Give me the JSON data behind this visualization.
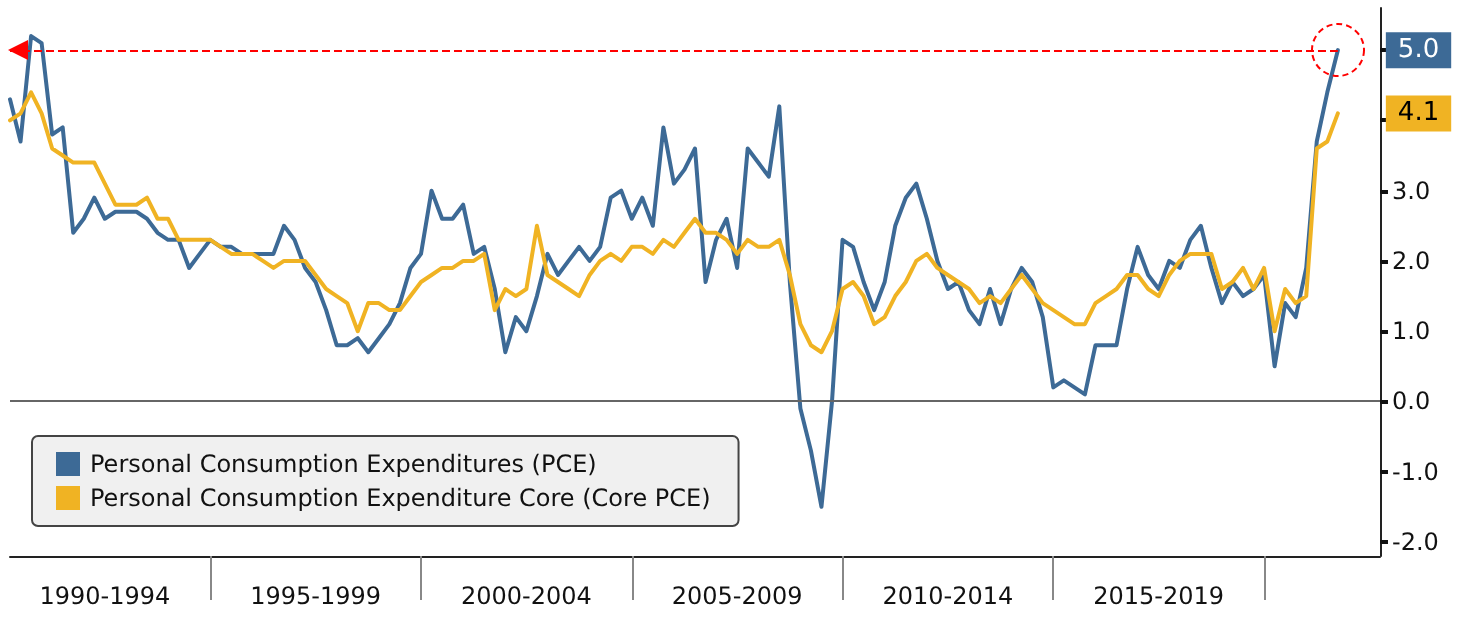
{
  "chart_data": {
    "type": "line",
    "categories": [
      null,
      null,
      null,
      null,
      null,
      null,
      null,
      null,
      null,
      "1990-1994",
      null,
      null,
      null,
      null,
      null,
      null,
      null,
      null,
      null,
      null,
      null,
      null,
      null,
      null,
      null,
      null,
      null,
      null,
      null,
      "1995-1999",
      null,
      null,
      null,
      null,
      null,
      null,
      null,
      null,
      null,
      null,
      null,
      null,
      null,
      null,
      null,
      null,
      null,
      null,
      null,
      "2000-2004",
      null,
      null,
      null,
      null,
      null,
      null,
      null,
      null,
      null,
      null,
      null,
      null,
      null,
      null,
      null,
      null,
      null,
      null,
      null,
      "2005-2009",
      null,
      null,
      null,
      null,
      null,
      null,
      null,
      null,
      null,
      null,
      null,
      null,
      null,
      null,
      null,
      null,
      null,
      null,
      null,
      "2010-2014",
      null,
      null,
      null,
      null,
      null,
      null,
      null,
      null,
      null,
      null,
      null,
      null,
      null,
      null,
      null,
      null,
      null,
      null,
      null,
      "2015-2019",
      null,
      null,
      null,
      null,
      null,
      null,
      null,
      null,
      null,
      null,
      null,
      null,
      null,
      null,
      null,
      null,
      null,
      null,
      null,
      null,
      null
    ],
    "series": [
      {
        "name": "Personal Consumption Expenditures (PCE)",
        "color": "#3d6a96",
        "values": [
          4.3,
          3.7,
          5.2,
          5.1,
          3.8,
          3.9,
          2.4,
          2.6,
          2.9,
          2.6,
          2.7,
          2.7,
          2.7,
          2.6,
          2.4,
          2.3,
          2.3,
          1.9,
          2.1,
          2.3,
          2.2,
          2.2,
          2.1,
          2.1,
          2.1,
          2.1,
          2.5,
          2.3,
          1.9,
          1.7,
          1.3,
          0.8,
          0.8,
          0.9,
          0.7,
          0.9,
          1.1,
          1.4,
          1.9,
          2.1,
          3.0,
          2.6,
          2.6,
          2.8,
          2.1,
          2.2,
          1.6,
          0.7,
          1.2,
          1.0,
          1.5,
          2.1,
          1.8,
          2.0,
          2.2,
          2.0,
          2.2,
          2.9,
          3.0,
          2.6,
          2.9,
          2.5,
          3.9,
          3.1,
          3.3,
          3.6,
          1.7,
          2.3,
          2.6,
          1.9,
          3.6,
          3.4,
          3.2,
          4.2,
          1.7,
          -0.1,
          -0.7,
          -1.5,
          0.0,
          2.3,
          2.2,
          1.7,
          1.3,
          1.7,
          2.5,
          2.9,
          3.1,
          2.6,
          2.0,
          1.6,
          1.7,
          1.3,
          1.1,
          1.6,
          1.1,
          1.6,
          1.9,
          1.7,
          1.2,
          0.2,
          0.3,
          0.2,
          0.1,
          0.8,
          0.8,
          0.8,
          1.6,
          2.2,
          1.8,
          1.6,
          2.0,
          1.9,
          2.3,
          2.5,
          1.9,
          1.4,
          1.7,
          1.5,
          1.6,
          1.8,
          0.5,
          1.4,
          1.2,
          1.9,
          3.7,
          4.4,
          5.0,
          null,
          null,
          null,
          null
        ]
      },
      {
        "name": "Personal Consumption Expenditure Core (Core PCE)",
        "color": "#f0b323",
        "values": [
          4.0,
          4.1,
          4.4,
          4.1,
          3.6,
          3.5,
          3.4,
          3.4,
          3.4,
          3.1,
          2.8,
          2.8,
          2.8,
          2.9,
          2.6,
          2.6,
          2.3,
          2.3,
          2.3,
          2.3,
          2.2,
          2.1,
          2.1,
          2.1,
          2.0,
          1.9,
          2.0,
          2.0,
          2.0,
          1.8,
          1.6,
          1.5,
          1.4,
          1.0,
          1.4,
          1.4,
          1.3,
          1.3,
          1.5,
          1.7,
          1.8,
          1.9,
          1.9,
          2.0,
          2.0,
          2.1,
          1.3,
          1.6,
          1.5,
          1.6,
          2.5,
          1.8,
          1.7,
          1.6,
          1.5,
          1.8,
          2.0,
          2.1,
          2.0,
          2.2,
          2.2,
          2.1,
          2.3,
          2.2,
          2.4,
          2.6,
          2.4,
          2.4,
          2.3,
          2.1,
          2.3,
          2.2,
          2.2,
          2.3,
          1.8,
          1.1,
          0.8,
          0.7,
          1.0,
          1.6,
          1.7,
          1.5,
          1.1,
          1.2,
          1.5,
          1.7,
          2.0,
          2.1,
          1.9,
          1.8,
          1.7,
          1.6,
          1.4,
          1.5,
          1.4,
          1.6,
          1.8,
          1.6,
          1.4,
          1.3,
          1.2,
          1.1,
          1.1,
          1.4,
          1.5,
          1.6,
          1.8,
          1.8,
          1.6,
          1.5,
          1.8,
          2.0,
          2.1,
          2.1,
          2.1,
          1.6,
          1.7,
          1.9,
          1.6,
          1.9,
          1.0,
          1.6,
          1.4,
          1.5,
          3.6,
          3.7,
          4.1,
          null,
          null,
          null,
          null
        ]
      }
    ],
    "ylim": [
      -2.2,
      5.6
    ],
    "yticks": [
      {
        "value": -2,
        "label": "-2.0"
      },
      {
        "value": -1,
        "label": "-1.0"
      },
      {
        "value": 0,
        "label": "0.0"
      },
      {
        "value": 1,
        "label": "1.0"
      },
      {
        "value": 2,
        "label": "2.0"
      },
      {
        "value": 3,
        "label": "3.0"
      },
      {
        "value": 4,
        "label": null
      },
      {
        "value": 5,
        "label": null
      }
    ],
    "ref_lines": [
      {
        "axis": "y",
        "value": 5.0,
        "color": "#ff0000",
        "line_style": "dashed"
      },
      {
        "axis": "y",
        "value": 0,
        "color": "#666666",
        "line_style": "solid"
      }
    ],
    "annotations": [
      {
        "text": "5.0",
        "y": 5.0
      },
      {
        "text": "4.1",
        "y": 4.1
      }
    ],
    "legend": "bottom left",
    "grid": false,
    "marker": "none",
    "line_style": "solid"
  }
}
